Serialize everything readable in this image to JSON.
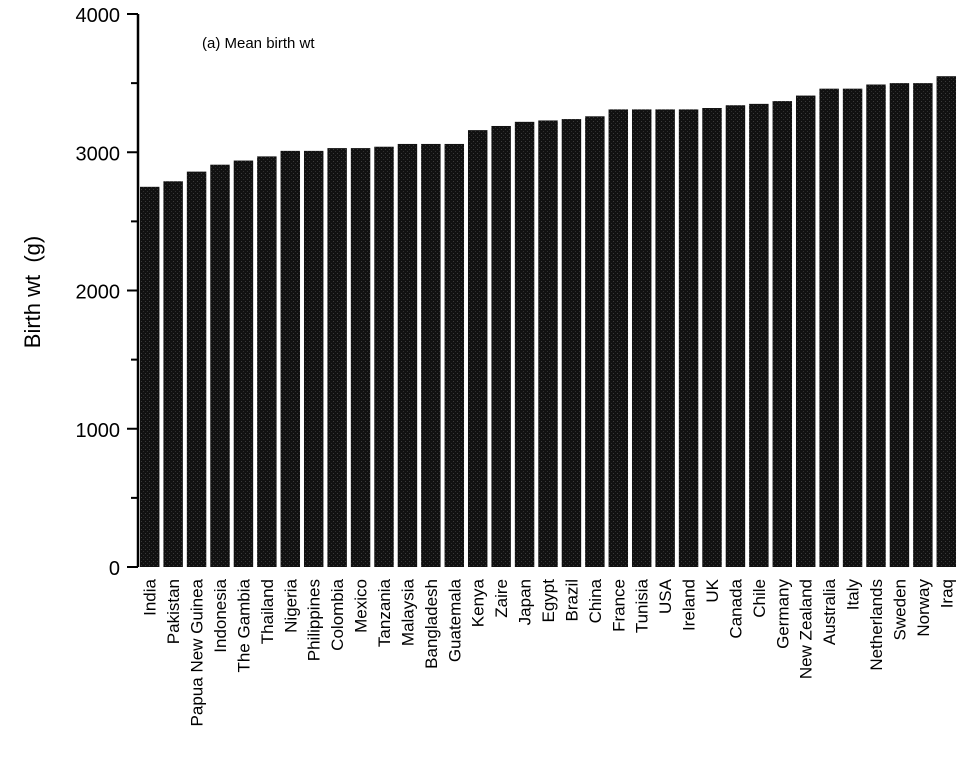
{
  "chart_data": {
    "type": "bar",
    "annotation": "(a) Mean birth wt",
    "ylabel": "Birth wt  (g)",
    "xlabel": "",
    "ylim": [
      0,
      4000
    ],
    "yticks": [
      0,
      1000,
      2000,
      3000,
      4000
    ],
    "yticks_labeled": true,
    "grid": false,
    "legend": "none",
    "bar_color": "#141414",
    "categories": [
      "India",
      "Pakistan",
      "Papua New Guinea",
      "Indonesia",
      "The Gambia",
      "Thailand",
      "Nigeria",
      "Philippines",
      "Colombia",
      "Mexico",
      "Tanzania",
      "Malaysia",
      "Bangladesh",
      "Guatemala",
      "Kenya",
      "Zaire",
      "Japan",
      "Egypt",
      "Brazil",
      "China",
      "France",
      "Tunisia",
      "USA",
      "Ireland",
      "UK",
      "Canada",
      "Chile",
      "Germany",
      "New Zealand",
      "Australia",
      "Italy",
      "Netherlands",
      "Sweden",
      "Norway",
      "Iraq"
    ],
    "values": [
      2750,
      2790,
      2860,
      2910,
      2940,
      2970,
      3010,
      3010,
      3030,
      3030,
      3040,
      3060,
      3060,
      3060,
      3160,
      3190,
      3220,
      3230,
      3240,
      3260,
      3310,
      3310,
      3310,
      3310,
      3320,
      3340,
      3350,
      3370,
      3410,
      3460,
      3460,
      3490,
      3500,
      3500,
      3550
    ]
  }
}
